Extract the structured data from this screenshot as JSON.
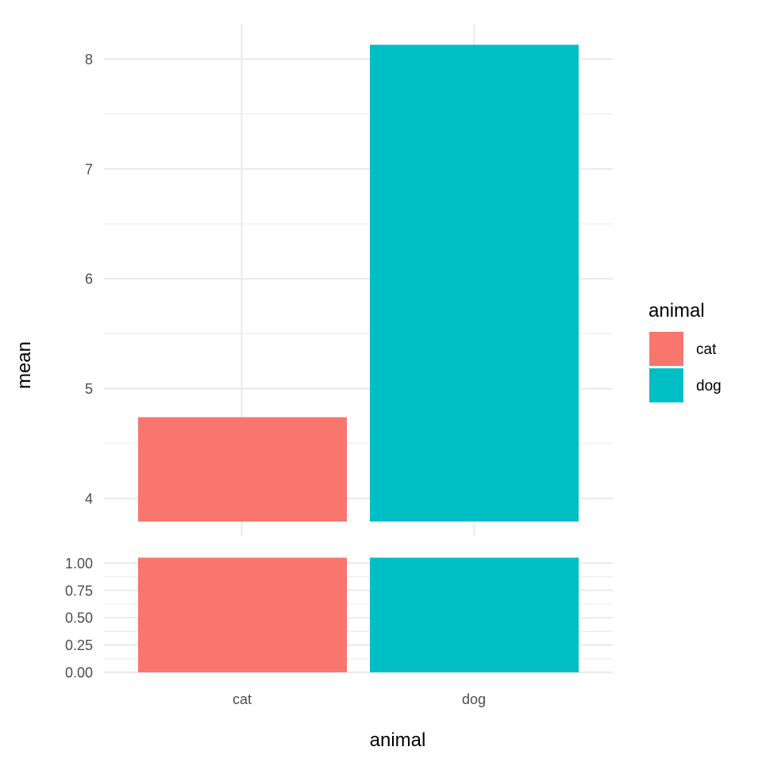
{
  "chart_data": {
    "type": "bar",
    "xlabel": "animal",
    "ylabel": "mean",
    "categories": [
      "cat",
      "dog"
    ],
    "values": [
      4.74,
      8.13
    ],
    "colors": [
      "#F8766D",
      "#00BFC4"
    ],
    "grid": true,
    "axis_break": {
      "lower_panel": {
        "ylim": [
          0,
          1.05
        ],
        "ticks": [
          "0.00",
          "0.25",
          "0.50",
          "0.75",
          "1.00"
        ],
        "values": [
          1.05,
          1.05
        ]
      },
      "upper_panel": {
        "ylim": [
          3.8,
          8.33
        ],
        "ticks": [
          "4",
          "5",
          "6",
          "7",
          "8"
        ]
      }
    },
    "legend": {
      "title": "animal",
      "placement": "right",
      "entries": [
        {
          "label": "cat",
          "color": "#F8766D"
        },
        {
          "label": "dog",
          "color": "#00BFC4"
        }
      ]
    }
  }
}
